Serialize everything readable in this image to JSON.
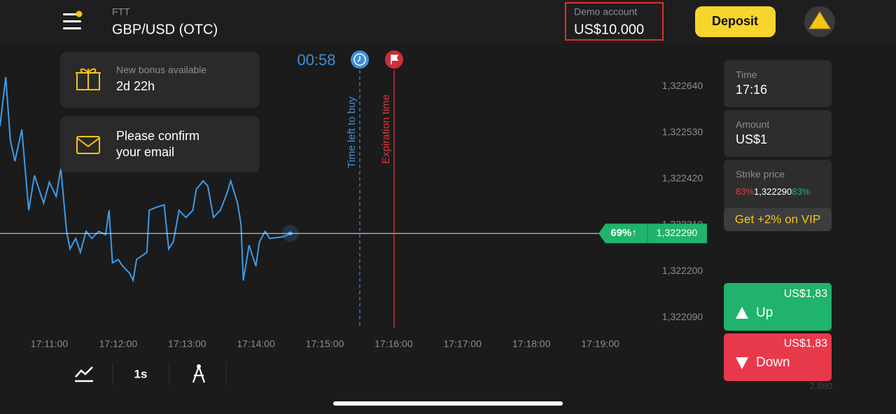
{
  "header": {
    "asset_type": "FTT",
    "asset": "GBP/USD (OTC)",
    "account_label": "Demo account",
    "balance": "US$10.000",
    "deposit": "Deposit"
  },
  "timer": "00:58",
  "notifications": [
    {
      "title": "New bonus available",
      "text": "2d 22h"
    },
    {
      "lines": [
        "Please confirm",
        "your email"
      ]
    }
  ],
  "markers": {
    "buy": "Time left to buy",
    "expiration": "Expiration time"
  },
  "chart": {
    "type": "line",
    "color": "#3d9be9",
    "xlim": [
      "17:10:17",
      "17:20:33"
    ],
    "ylim": [
      1.322062,
      1.322742
    ],
    "xticks": [
      "17:11:00",
      "17:12:00",
      "17:13:00",
      "17:14:00",
      "17:15:00",
      "17:16:00",
      "17:17:00",
      "17:18:00",
      "17:19:00"
    ],
    "yticks": [
      {
        "value": 1.32264,
        "label": "1,322640"
      },
      {
        "value": 1.32253,
        "label": "1,322530"
      },
      {
        "value": 1.32242,
        "label": "1,322420"
      },
      {
        "value": 1.32231,
        "label": "1,322310"
      },
      {
        "value": 1.3222,
        "label": "1,322200"
      },
      {
        "value": 1.32209,
        "label": "1,322090"
      }
    ],
    "x": [
      "17:10:17",
      "17:10:22",
      "17:10:26",
      "17:10:30",
      "17:10:36",
      "17:10:42",
      "17:10:47",
      "17:10:51",
      "17:10:55",
      "17:11:00",
      "17:11:06",
      "17:11:10",
      "17:11:15",
      "17:11:18",
      "17:11:23",
      "17:11:27",
      "17:11:32",
      "17:11:37",
      "17:11:43",
      "17:11:49",
      "17:11:52",
      "17:11:55",
      "17:12:00",
      "17:12:04",
      "17:12:10",
      "17:12:13",
      "17:12:16",
      "17:12:25",
      "17:12:27",
      "17:12:34",
      "17:12:40",
      "17:12:44",
      "17:12:48",
      "17:12:53",
      "17:12:59",
      "17:13:05",
      "17:13:08",
      "17:13:14",
      "17:13:18",
      "17:13:23",
      "17:13:29",
      "17:13:35",
      "17:13:38",
      "17:13:44",
      "17:13:47",
      "17:13:49",
      "17:13:54",
      "17:14:00",
      "17:14:03",
      "17:14:08",
      "17:14:12",
      "17:14:24",
      "17:14:30"
    ],
    "values": [
      1.322545,
      1.322662,
      1.322512,
      1.322462,
      1.322537,
      1.322345,
      1.322428,
      1.322395,
      1.322362,
      1.322412,
      1.322378,
      1.322445,
      1.322295,
      1.322253,
      1.322278,
      1.322245,
      1.322295,
      1.322278,
      1.322295,
      1.322287,
      1.322345,
      1.32222,
      1.322228,
      1.322212,
      1.322195,
      1.322178,
      1.322228,
      1.322245,
      1.322345,
      1.322353,
      1.322358,
      1.322253,
      1.32227,
      1.322345,
      1.322328,
      1.322345,
      1.322395,
      1.322415,
      1.322403,
      1.322328,
      1.322345,
      1.322387,
      1.322415,
      1.322362,
      1.322312,
      1.322178,
      1.322262,
      1.322212,
      1.32227,
      1.322295,
      1.322278,
      1.322282,
      1.32229
    ],
    "current_price": {
      "value": 1.32229,
      "label": "1,322290"
    },
    "payout": "69%↑"
  },
  "side_panel": {
    "time_label": "Time",
    "time": "17:16",
    "amount_label": "Amount",
    "amount": "US$1",
    "strike_label": "Strike price",
    "strike_left": "83%",
    "strike": "1,322290",
    "strike_right": "83%",
    "vip": "Get +2% on VIP",
    "up_payout": "US$1,83",
    "up": "Up",
    "down_payout": "US$1,83",
    "down": "Down",
    "footer": "2.880"
  },
  "toolbar": {
    "interval": "1s"
  }
}
